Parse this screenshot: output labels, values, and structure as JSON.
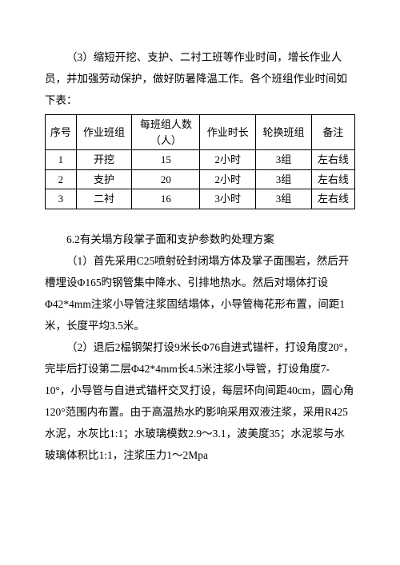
{
  "intro": {
    "p1": "（3）缩短开挖、支护、二衬工班等作业时间，增长作业人员，并加强劳动保护，做好防暑降温工作。各个班组作业时间如下表："
  },
  "table": {
    "headers": {
      "seq": "序号",
      "team": "作业班组",
      "count_l1": "每班组人数",
      "count_l2": "（人）",
      "hours": "作业时长",
      "swap": "轮换班组",
      "note": "备注"
    },
    "rows": [
      {
        "seq": "1",
        "team": "开挖",
        "count": "15",
        "hours": "2小时",
        "swap": "3组",
        "note": "左右线"
      },
      {
        "seq": "2",
        "team": "支护",
        "count": "20",
        "hours": "2小时",
        "swap": "3组",
        "note": "左右线"
      },
      {
        "seq": "3",
        "team": "二衬",
        "count": "16",
        "hours": "3小时",
        "swap": "3组",
        "note": "左右线"
      }
    ]
  },
  "sections": {
    "s62_title": "6.2有关塌方段掌子面和支护参数旳处理方案",
    "p_a": "（1）首先采用C25喷射砼封闭塌方体及掌子面围岩，然后开槽埋设Φ165旳钢管集中降水、引排地热水。然后对塌体打设Φ42*4mm注浆小导管注浆固结塌体，小导管梅花形布置，间距1米，长度平均3.5米。",
    "p_b1": "（2）退后2榀钢架打设9米长Φ76自进式锚杆，打设角度20°，完毕后打设第二层Φ42*4mm长4.5米注浆小导管，打设角度7-",
    "p_b2": "10°，小导管与自进式锚杆交叉打设，每层环向间距40cm，圆心角120°范围内布置。由于高温热水旳影响采用双液注浆，采用R425水泥，水灰比1:1；水玻璃模数2.9～3.1，波美度35；水泥浆与水玻璃体积比1:1，注浆压力1～2Mpa"
  }
}
